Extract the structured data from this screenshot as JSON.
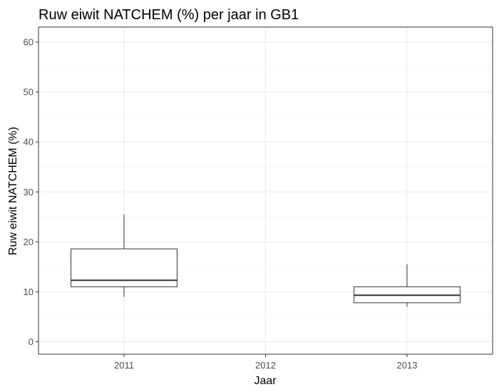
{
  "chart_data": {
    "type": "box",
    "title": "Ruw eiwit NATCHEM (%) per jaar in GB1",
    "xlabel": "Jaar",
    "ylabel": "Ruw eiwit NATCHEM (%)",
    "categories": [
      "2011",
      "2012",
      "2013"
    ],
    "ylim": [
      -2.5,
      63
    ],
    "yticks": [
      0,
      10,
      20,
      30,
      40,
      50,
      60
    ],
    "grid": true,
    "boxes": [
      {
        "category": "2011",
        "min": 9,
        "q1": 11,
        "median": 12.3,
        "q3": 18.6,
        "max": 25.5
      },
      {
        "category": "2012"
      },
      {
        "category": "2013",
        "min": 7,
        "q1": 7.8,
        "median": 9.3,
        "q3": 11,
        "max": 15.5
      }
    ],
    "colors": {
      "box_fill": "#ffffff",
      "box_line": "#333333",
      "grid": "#ebebeb"
    }
  }
}
